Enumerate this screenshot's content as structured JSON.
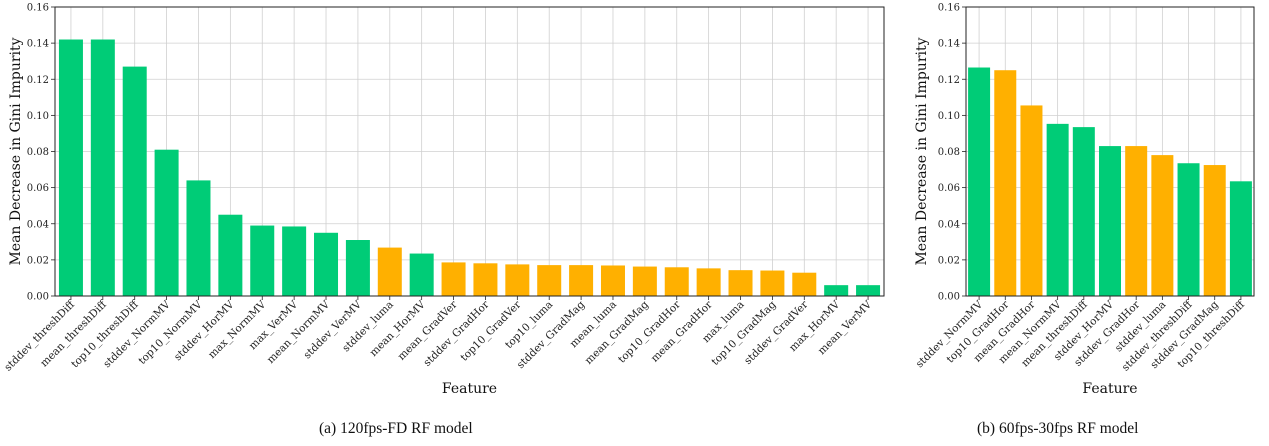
{
  "colors": {
    "green": "#00CC77",
    "orange": "#FFB000",
    "grid": "#d0d0d0"
  },
  "chart_data": [
    {
      "type": "bar",
      "caption": "(a) 120fps-FD RF model",
      "xlabel": "Feature",
      "ylabel": "Mean Decrease in Gini Impurity",
      "ylim": [
        0,
        0.16
      ],
      "yticks": [
        "0.00",
        "0.02",
        "0.04",
        "0.06",
        "0.08",
        "0.10",
        "0.12",
        "0.14",
        "0.16"
      ],
      "grid": true,
      "categories": [
        "stddev_threshDiff",
        "mean_threshDiff",
        "top10_threshDiff",
        "stddev_NormMV",
        "top10_NormMV",
        "stddev_HorMV",
        "max_NormMV",
        "max_VerMV",
        "mean_NormMV",
        "stddev_VerMV",
        "stddev_luma",
        "mean_HorMV",
        "mean_GradVer",
        "stddev_GradHor",
        "top10_GradVer",
        "top10_luma",
        "stddev_GradMag",
        "mean_luma",
        "mean_GradMag",
        "top10_GradHor",
        "mean_GradHor",
        "max_luma",
        "top10_GradMag",
        "stddev_GradVer",
        "max_HorMV",
        "mean_VerMV"
      ],
      "values": [
        0.142,
        0.142,
        0.127,
        0.081,
        0.064,
        0.045,
        0.039,
        0.0385,
        0.035,
        0.031,
        0.0268,
        0.0235,
        0.0186,
        0.0181,
        0.0175,
        0.0171,
        0.0171,
        0.0169,
        0.0163,
        0.0159,
        0.0153,
        0.0143,
        0.0141,
        0.0129,
        0.006,
        0.006
      ],
      "bar_colors": [
        "green",
        "green",
        "green",
        "green",
        "green",
        "green",
        "green",
        "green",
        "green",
        "green",
        "orange",
        "green",
        "orange",
        "orange",
        "orange",
        "orange",
        "orange",
        "orange",
        "orange",
        "orange",
        "orange",
        "orange",
        "orange",
        "orange",
        "green",
        "green"
      ]
    },
    {
      "type": "bar",
      "caption": "(b) 60fps-30fps RF model",
      "xlabel": "Feature",
      "ylabel": "Mean Decrease in Gini Impurity",
      "ylim": [
        0,
        0.16
      ],
      "yticks": [
        "0.00",
        "0.02",
        "0.04",
        "0.06",
        "0.08",
        "0.10",
        "0.12",
        "0.14",
        "0.16"
      ],
      "grid": true,
      "categories": [
        "stddev_NormMV",
        "top10_GradHor",
        "mean_GradHor",
        "mean_NormMV",
        "mean_threshDiff",
        "stddev_HorMV",
        "stddev_GradHor",
        "stddev_luma",
        "stddev_threshDiff",
        "stddev_GradMag",
        "top10_threshDiff"
      ],
      "values": [
        0.1265,
        0.125,
        0.1055,
        0.0953,
        0.0935,
        0.083,
        0.083,
        0.078,
        0.0735,
        0.0725,
        0.0635
      ],
      "bar_colors": [
        "green",
        "orange",
        "orange",
        "green",
        "green",
        "green",
        "orange",
        "orange",
        "green",
        "orange",
        "green"
      ]
    }
  ]
}
